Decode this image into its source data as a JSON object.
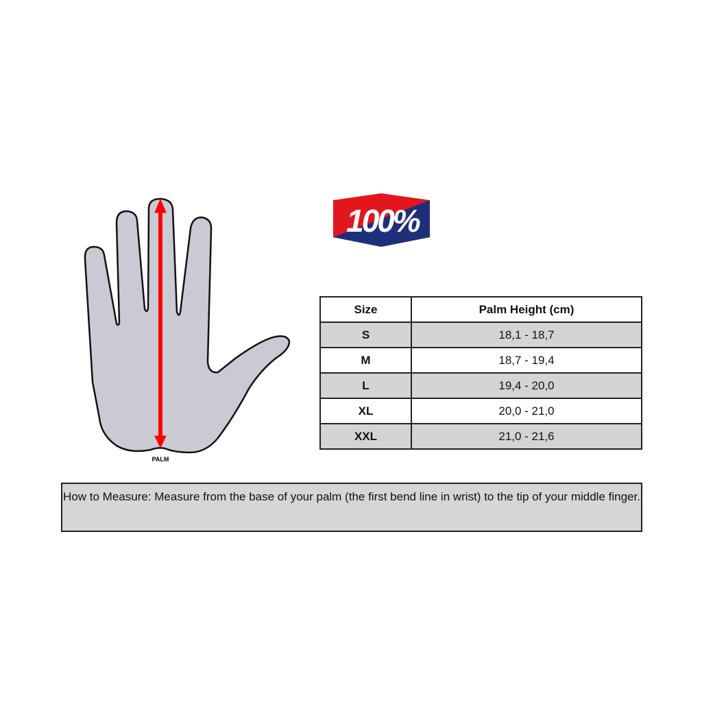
{
  "diagram": {
    "palm_label": "PALM",
    "arrow_color": "#ff0000",
    "hand_fill": "#c9cad3"
  },
  "logo": {
    "text": "100%",
    "colors": {
      "red": "#e3161d",
      "blue": "#1d2f7a"
    }
  },
  "table": {
    "headers": [
      "Size",
      "Palm Height (cm)"
    ],
    "rows": [
      {
        "size": "S",
        "range": "18,1 - 18,7"
      },
      {
        "size": "M",
        "range": "18,7 - 19,4"
      },
      {
        "size": "L",
        "range": "19,4 - 20,0"
      },
      {
        "size": "XL",
        "range": "20,0 - 21,0"
      },
      {
        "size": "XXL",
        "range": "21,0 - 21,6"
      }
    ]
  },
  "instructions": "How to Measure:  Measure from the base of your palm (the first bend line in wrist) to the tip of your middle finger."
}
